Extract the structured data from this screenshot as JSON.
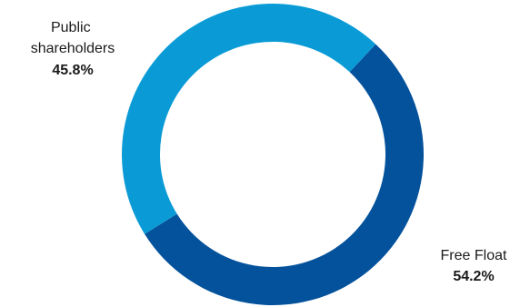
{
  "chart_data": {
    "type": "pie",
    "style": "donut",
    "title": "",
    "categories": [
      "Public shareholders",
      "Free Float"
    ],
    "values": [
      45.8,
      54.2
    ],
    "value_labels": [
      "45.8%",
      "54.2%"
    ],
    "label_lines": [
      [
        "Public",
        "shareholders"
      ],
      [
        "Free Float"
      ]
    ],
    "colors": [
      "#0a9bd6",
      "#04529c"
    ],
    "legend": "none"
  }
}
